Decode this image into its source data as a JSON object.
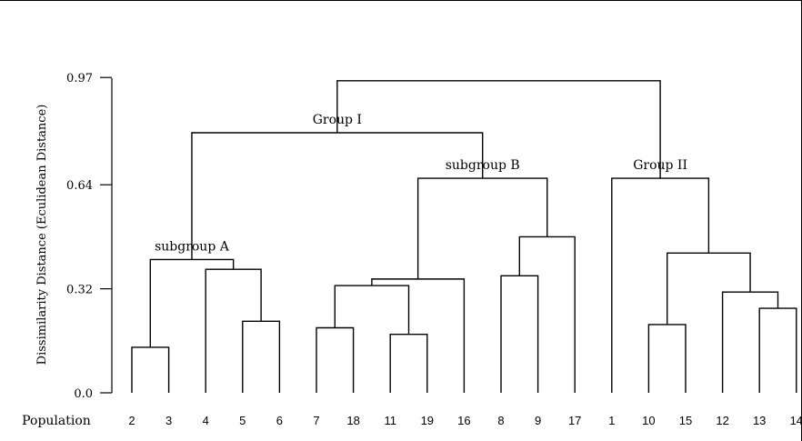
{
  "chart_data": {
    "type": "dendrogram",
    "ylabel": "Dissimilarity Distance (Eculidean Distance)",
    "xlabel": "Population",
    "yticks": [
      "0.0",
      "0.32",
      "0.64",
      "0.97"
    ],
    "ylim": [
      0,
      0.97
    ],
    "leaves": [
      "2",
      "3",
      "4",
      "5",
      "6",
      "7",
      "18",
      "11",
      "19",
      "16",
      "8",
      "9",
      "17",
      "1",
      "10",
      "15",
      "12",
      "13",
      "14"
    ],
    "merges": [
      {
        "id": "m1",
        "left": "2",
        "right": "3",
        "height": 0.14
      },
      {
        "id": "m2",
        "left": "5",
        "right": "6",
        "height": 0.22
      },
      {
        "id": "m3",
        "left": "4",
        "right": "m2",
        "height": 0.38
      },
      {
        "id": "m4",
        "left": "m1",
        "right": "m3",
        "height": 0.41
      },
      {
        "id": "m5",
        "left": "7",
        "right": "18",
        "height": 0.2
      },
      {
        "id": "m6",
        "left": "11",
        "right": "19",
        "height": 0.18
      },
      {
        "id": "m7",
        "left": "m5",
        "right": "m6",
        "height": 0.33
      },
      {
        "id": "m8",
        "left": "m7",
        "right": "16",
        "height": 0.35
      },
      {
        "id": "m9",
        "left": "8",
        "right": "9",
        "height": 0.36
      },
      {
        "id": "m10",
        "left": "m9",
        "right": "17",
        "height": 0.48
      },
      {
        "id": "m11",
        "left": "m8",
        "right": "m10",
        "height": 0.66
      },
      {
        "id": "m12",
        "left": "m4",
        "right": "m11",
        "height": 0.8
      },
      {
        "id": "m13",
        "left": "10",
        "right": "15",
        "height": 0.21
      },
      {
        "id": "m14",
        "left": "13",
        "right": "14",
        "height": 0.26
      },
      {
        "id": "m15",
        "left": "12",
        "right": "m14",
        "height": 0.31
      },
      {
        "id": "m16",
        "left": "m13",
        "right": "m15",
        "height": 0.43
      },
      {
        "id": "m17",
        "left": "1",
        "right": "m16",
        "height": 0.66
      },
      {
        "id": "m18",
        "left": "m12",
        "right": "m17",
        "height": 0.96
      }
    ],
    "annotations": [
      {
        "text": "Group I",
        "node": "m12"
      },
      {
        "text": "Group II",
        "node": "m17"
      },
      {
        "text": "subgroup A",
        "node": "m4"
      },
      {
        "text": "subgroup B",
        "node": "m11"
      }
    ]
  }
}
